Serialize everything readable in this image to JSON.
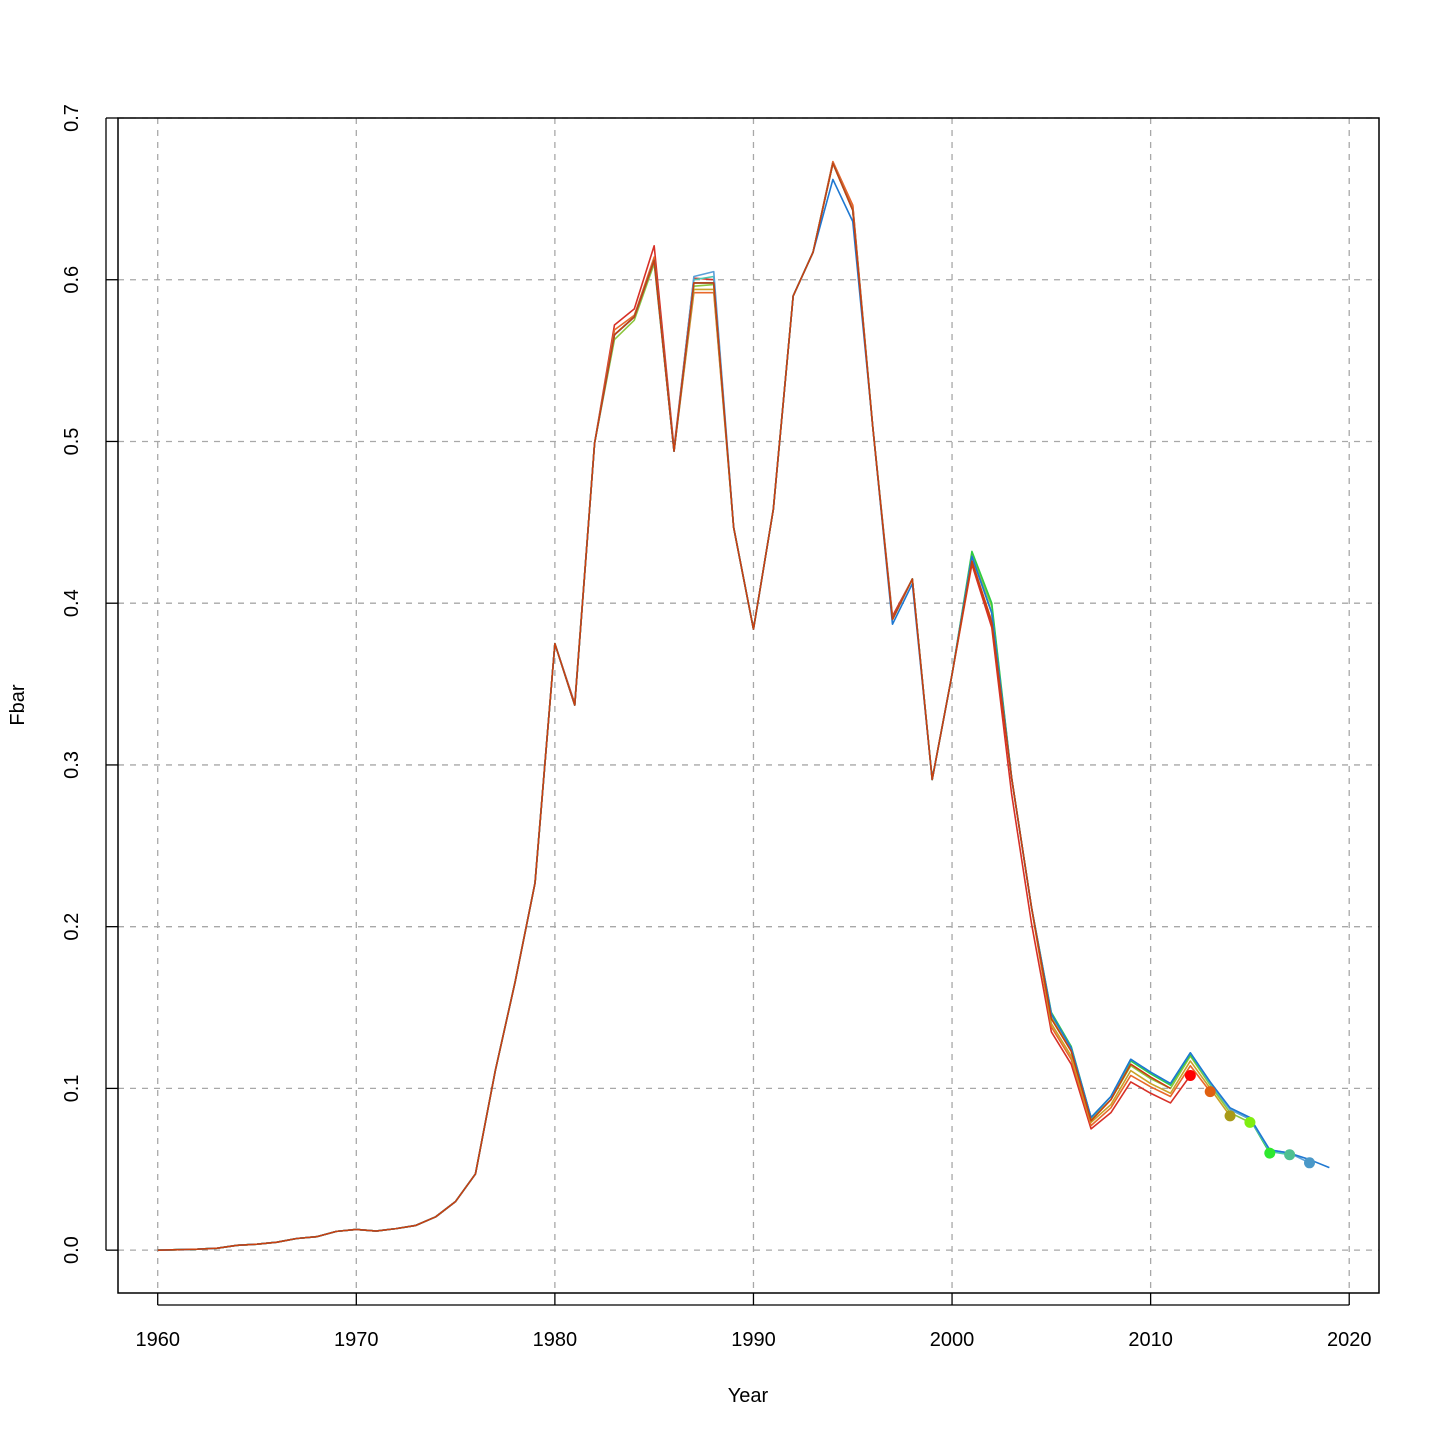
{
  "chart_data": {
    "type": "line",
    "title": "",
    "xlabel": "Year",
    "ylabel": "Fbar",
    "xlim": [
      1958,
      2021.5
    ],
    "ylim": [
      -0.0265,
      0.7
    ],
    "x_ticks": [
      1960,
      1970,
      1980,
      1990,
      2000,
      2010,
      2020
    ],
    "y_ticks": [
      0.0,
      0.1,
      0.2,
      0.3,
      0.4,
      0.5,
      0.6,
      0.7
    ],
    "y_tick_labels": [
      "0.0",
      "0.1",
      "0.2",
      "0.3",
      "0.4",
      "0.5",
      "0.6",
      "0.7"
    ],
    "grid": true,
    "base_years": [
      1960,
      1961,
      1962,
      1963,
      1964,
      1965,
      1966,
      1967,
      1968,
      1969,
      1970,
      1971,
      1972,
      1973,
      1974,
      1975,
      1976,
      1977,
      1978,
      1979,
      1980,
      1981,
      1982,
      1983,
      1984,
      1985,
      1986,
      1987,
      1988,
      1989,
      1990,
      1991,
      1992,
      1993,
      1994,
      1995,
      1996,
      1997,
      1998,
      1999,
      2000,
      2001,
      2002,
      2003,
      2004,
      2005,
      2006,
      2007,
      2008,
      2009,
      2010,
      2011
    ],
    "base_values": [
      0.0,
      0.0003,
      0.0006,
      0.0012,
      0.003,
      0.0037,
      0.0049,
      0.0072,
      0.0083,
      0.0116,
      0.0128,
      0.0118,
      0.0133,
      0.0153,
      0.0206,
      0.0301,
      0.0471,
      0.111,
      0.166,
      0.227,
      0.375,
      0.337,
      0.499,
      0.566,
      0.577,
      0.612,
      0.494,
      0.598,
      0.598,
      0.447,
      0.384,
      0.458,
      0.59,
      0.617,
      0.672,
      0.643,
      0.51,
      0.39,
      0.415,
      0.291,
      0.356,
      0.429,
      0.394,
      0.292,
      0.212,
      0.143,
      0.123,
      0.08,
      0.093,
      0.115,
      0.107,
      0.1
    ],
    "series": [
      {
        "color": "#d73027",
        "values": {
          "1980": 0.375,
          "1981": 0.338,
          "1983": 0.572,
          "1984": 0.582,
          "1985": 0.621,
          "1986": 0.496,
          "1987": 0.601,
          "1988": 0.6,
          "1994": 0.673,
          "1995": 0.646,
          "1997": 0.392,
          "2001": 0.424,
          "2002": 0.385,
          "2003": 0.282,
          "2004": 0.202,
          "2005": 0.135,
          "2006": 0.115,
          "2007": 0.075,
          "2008": 0.085,
          "2009": 0.104,
          "2010": 0.097,
          "2011": 0.091,
          "2012": 0.108
        },
        "end_year": 2012
      },
      {
        "color": "#e8682a",
        "values": {
          "1983": 0.569,
          "1984": 0.578,
          "1985": 0.614,
          "1987": 0.592,
          "1988": 0.592,
          "1994": 0.673,
          "1995": 0.646,
          "2001": 0.426,
          "2002": 0.389,
          "2005": 0.138,
          "2006": 0.118,
          "2007": 0.077,
          "2008": 0.088,
          "2009": 0.108,
          "2010": 0.101,
          "2011": 0.095,
          "2012": 0.114,
          "2013": 0.098
        },
        "end_year": 2013
      },
      {
        "color": "#c9a227",
        "values": {
          "1987": 0.594,
          "1988": 0.594,
          "2005": 0.14,
          "2006": 0.12,
          "2007": 0.079,
          "2008": 0.09,
          "2009": 0.111,
          "2010": 0.103,
          "2011": 0.097,
          "2012": 0.117,
          "2013": 0.1,
          "2014": 0.083
        },
        "end_year": 2014
      },
      {
        "color": "#8cc63f",
        "values": {
          "1983": 0.563,
          "1984": 0.575,
          "1985": 0.61,
          "1987": 0.596,
          "1988": 0.597,
          "2001": 0.43,
          "2002": 0.398,
          "2005": 0.144,
          "2006": 0.123,
          "2007": 0.081,
          "2008": 0.093,
          "2009": 0.114,
          "2010": 0.106,
          "2011": 0.1,
          "2012": 0.12,
          "2013": 0.102,
          "2014": 0.085,
          "2015": 0.079
        },
        "end_year": 2015
      },
      {
        "color": "#2ecc40",
        "values": {
          "2001": 0.432,
          "2002": 0.4,
          "2005": 0.147,
          "2006": 0.126,
          "2007": 0.082,
          "2008": 0.095,
          "2009": 0.117,
          "2010": 0.109,
          "2011": 0.102,
          "2012": 0.121,
          "2013": 0.103,
          "2014": 0.087,
          "2015": 0.081,
          "2016": 0.06
        },
        "end_year": 2016
      },
      {
        "color": "#48c9b0",
        "values": {
          "1987": 0.6,
          "1988": 0.602,
          "2005": 0.146,
          "2006": 0.125,
          "2007": 0.082,
          "2008": 0.095,
          "2009": 0.118,
          "2010": 0.11,
          "2011": 0.103,
          "2012": 0.122,
          "2013": 0.103,
          "2014": 0.087,
          "2015": 0.081,
          "2016": 0.061,
          "2017": 0.059
        },
        "end_year": 2017
      },
      {
        "color": "#5aa0d8",
        "values": {
          "1987": 0.602,
          "1988": 0.605,
          "2005": 0.146,
          "2006": 0.125,
          "2007": 0.082,
          "2008": 0.095,
          "2009": 0.118,
          "2010": 0.11,
          "2011": 0.103,
          "2012": 0.122,
          "2013": 0.104,
          "2014": 0.087,
          "2015": 0.081,
          "2016": 0.062,
          "2017": 0.06,
          "2018": 0.054
        },
        "end_year": 2018
      },
      {
        "color": "#1f78d1",
        "values": {
          "1994": 0.662,
          "1995": 0.636,
          "1997": 0.387,
          "1998": 0.412,
          "2005": 0.146,
          "2006": 0.125,
          "2007": 0.082,
          "2008": 0.095,
          "2009": 0.118,
          "2010": 0.11,
          "2011": 0.103,
          "2012": 0.122,
          "2013": 0.104,
          "2014": 0.088,
          "2015": 0.082,
          "2016": 0.062,
          "2017": 0.06,
          "2018": 0.056,
          "2019": 0.051
        },
        "end_year": 2019
      },
      {
        "color": "#c8400f",
        "values": {
          "2001": 0.426,
          "2002": 0.388
        },
        "end_year": 2011
      }
    ],
    "terminal_points": [
      {
        "x": 2012,
        "y": 0.108,
        "color": "#ff0000"
      },
      {
        "x": 2013,
        "y": 0.098,
        "color": "#e06010"
      },
      {
        "x": 2014,
        "y": 0.083,
        "color": "#a89a18"
      },
      {
        "x": 2015,
        "y": 0.079,
        "color": "#80ee10"
      },
      {
        "x": 2016,
        "y": 0.06,
        "color": "#2ee82e"
      },
      {
        "x": 2017,
        "y": 0.059,
        "color": "#4fc090"
      },
      {
        "x": 2018,
        "y": 0.054,
        "color": "#4a98c8"
      }
    ]
  }
}
